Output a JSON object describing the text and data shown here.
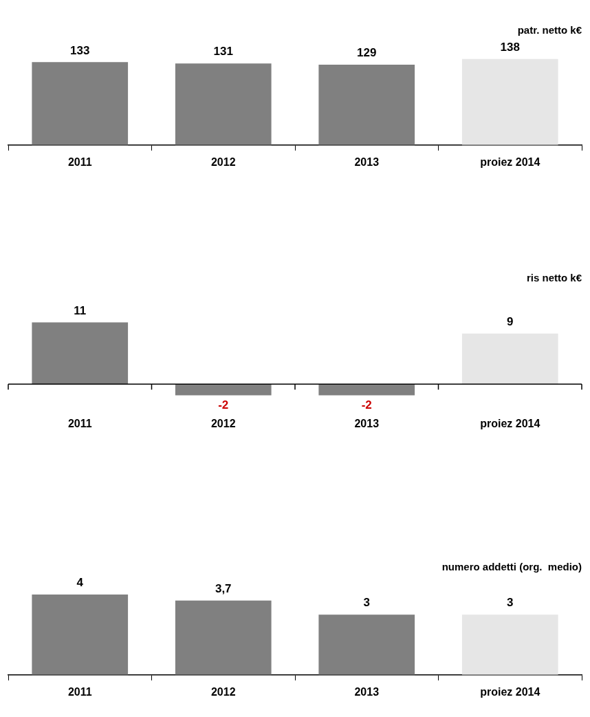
{
  "chart_data": [
    {
      "type": "bar",
      "title": "patr. netto k€",
      "categories": [
        "2011",
        "2012",
        "2013",
        "proiez 2014"
      ],
      "values": [
        133,
        131,
        129,
        138
      ],
      "colors": [
        "#808080",
        "#808080",
        "#808080",
        "#e6e6e6"
      ],
      "data_labels": true,
      "grid": false,
      "legend": false
    },
    {
      "type": "bar",
      "title": "ris netto k€",
      "categories": [
        "2011",
        "2012",
        "2013",
        "proiez 2014"
      ],
      "values": [
        11,
        -2,
        -2,
        9
      ],
      "colors": [
        "#808080",
        "#808080",
        "#808080",
        "#e6e6e6"
      ],
      "data_labels": true,
      "grid": false,
      "legend": false
    },
    {
      "type": "bar",
      "title": "numero addetti (org.  medio)",
      "categories": [
        "2011",
        "2012",
        "2013",
        "proiez 2014"
      ],
      "values": [
        4,
        3.7,
        3,
        3
      ],
      "value_labels": [
        "4",
        "3,7",
        "3",
        "3"
      ],
      "colors": [
        "#808080",
        "#808080",
        "#808080",
        "#e6e6e6"
      ],
      "grid": false,
      "legend": false
    }
  ]
}
